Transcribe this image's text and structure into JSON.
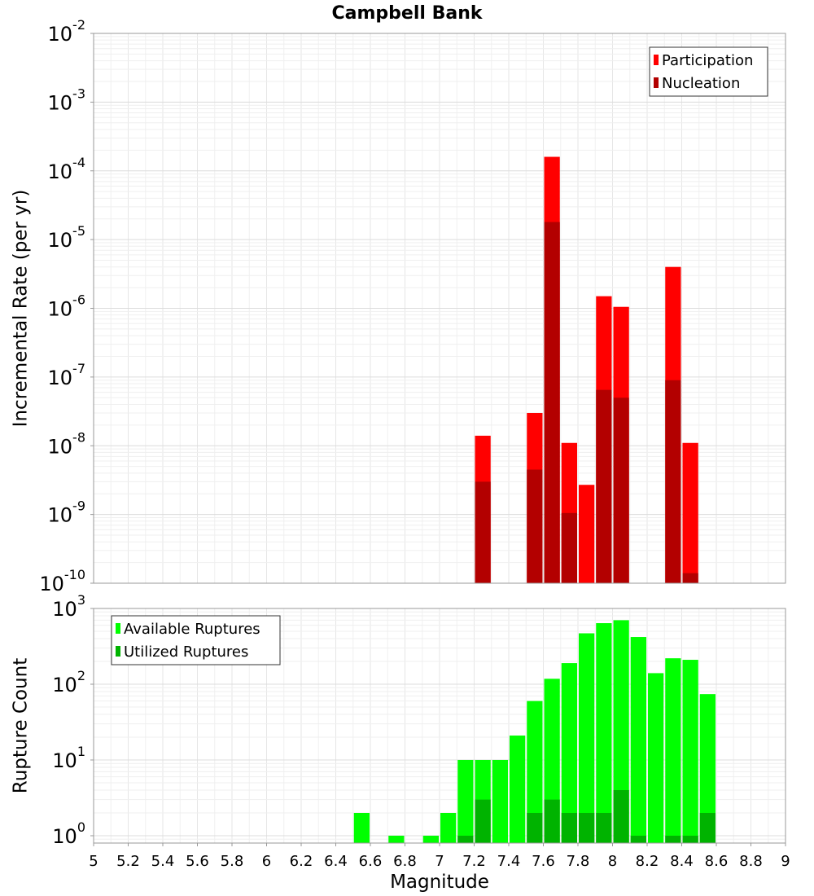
{
  "figure_title": "Campbell Bank",
  "chart_data": [
    {
      "type": "bar",
      "scale": "log",
      "ylabel": "Incremental Rate (per yr)",
      "ylim": [
        1e-10,
        0.01
      ],
      "xlim": [
        5,
        9
      ],
      "y_tick_labels": [
        {
          "exp": "-10",
          "value": 1e-10
        },
        {
          "exp": "-9",
          "value": 1e-09
        },
        {
          "exp": "-8",
          "value": 1e-08
        },
        {
          "exp": "-7",
          "value": 1e-07
        },
        {
          "exp": "-6",
          "value": 1e-06
        },
        {
          "exp": "-5",
          "value": 1e-05
        },
        {
          "exp": "-4",
          "value": 0.0001
        },
        {
          "exp": "-3",
          "value": 0.001
        },
        {
          "exp": "-2",
          "value": 0.01
        }
      ],
      "tick_base": "10",
      "bar_width": 0.1,
      "legend_position": "top-right",
      "series": [
        {
          "name": "Participation",
          "color": "#ff0000",
          "points": [
            {
              "x": 7.25,
              "y": 1.4e-08
            },
            {
              "x": 7.55,
              "y": 3e-08
            },
            {
              "x": 7.65,
              "y": 0.00016
            },
            {
              "x": 7.75,
              "y": 1.1e-08
            },
            {
              "x": 7.85,
              "y": 2.7e-09
            },
            {
              "x": 7.95,
              "y": 1.5e-06
            },
            {
              "x": 8.05,
              "y": 1.05e-06
            },
            {
              "x": 8.35,
              "y": 4e-06
            },
            {
              "x": 8.45,
              "y": 1.1e-08
            }
          ]
        },
        {
          "name": "Nucleation",
          "color": "#b30000",
          "points": [
            {
              "x": 7.25,
              "y": 3e-09
            },
            {
              "x": 7.55,
              "y": 4.5e-09
            },
            {
              "x": 7.65,
              "y": 1.8e-05
            },
            {
              "x": 7.75,
              "y": 1.05e-09
            },
            {
              "x": 7.95,
              "y": 6.5e-08
            },
            {
              "x": 8.05,
              "y": 5e-08
            },
            {
              "x": 8.35,
              "y": 9e-08
            },
            {
              "x": 8.45,
              "y": 1.4e-10
            }
          ]
        }
      ]
    },
    {
      "type": "bar",
      "scale": "log",
      "ylabel": "Rupture Count",
      "xlabel": "Magnitude",
      "ylim": [
        0.8,
        1000
      ],
      "xlim": [
        5,
        9
      ],
      "y_tick_labels": [
        {
          "exp": "0",
          "value": 1
        },
        {
          "exp": "1",
          "value": 10
        },
        {
          "exp": "2",
          "value": 100
        },
        {
          "exp": "3",
          "value": 1000
        }
      ],
      "tick_base": "10",
      "x_tick_labels": [
        "5",
        "5.2",
        "5.4",
        "5.6",
        "5.8",
        "6",
        "6.2",
        "6.4",
        "6.6",
        "6.8",
        "7",
        "7.2",
        "7.4",
        "7.6",
        "7.8",
        "8",
        "8.2",
        "8.4",
        "8.6",
        "8.8",
        "9"
      ],
      "bar_width": 0.1,
      "legend_position": "top-left",
      "series": [
        {
          "name": "Available Ruptures",
          "color": "#00ff00",
          "points": [
            {
              "x": 6.55,
              "y": 2
            },
            {
              "x": 6.75,
              "y": 1
            },
            {
              "x": 6.95,
              "y": 1
            },
            {
              "x": 7.05,
              "y": 2
            },
            {
              "x": 7.15,
              "y": 10
            },
            {
              "x": 7.25,
              "y": 10
            },
            {
              "x": 7.35,
              "y": 10
            },
            {
              "x": 7.45,
              "y": 21
            },
            {
              "x": 7.55,
              "y": 60
            },
            {
              "x": 7.65,
              "y": 118
            },
            {
              "x": 7.75,
              "y": 190
            },
            {
              "x": 7.85,
              "y": 470
            },
            {
              "x": 7.95,
              "y": 640
            },
            {
              "x": 8.05,
              "y": 700
            },
            {
              "x": 8.15,
              "y": 420
            },
            {
              "x": 8.25,
              "y": 140
            },
            {
              "x": 8.35,
              "y": 220
            },
            {
              "x": 8.45,
              "y": 210
            },
            {
              "x": 8.55,
              "y": 74
            }
          ]
        },
        {
          "name": "Utilized Ruptures",
          "color": "#00b300",
          "points": [
            {
              "x": 7.15,
              "y": 1
            },
            {
              "x": 7.25,
              "y": 3
            },
            {
              "x": 7.55,
              "y": 2
            },
            {
              "x": 7.65,
              "y": 3
            },
            {
              "x": 7.75,
              "y": 2
            },
            {
              "x": 7.85,
              "y": 2
            },
            {
              "x": 7.95,
              "y": 2
            },
            {
              "x": 8.05,
              "y": 4
            },
            {
              "x": 8.15,
              "y": 1
            },
            {
              "x": 8.35,
              "y": 1
            },
            {
              "x": 8.45,
              "y": 1
            },
            {
              "x": 8.55,
              "y": 2
            }
          ]
        }
      ]
    }
  ]
}
